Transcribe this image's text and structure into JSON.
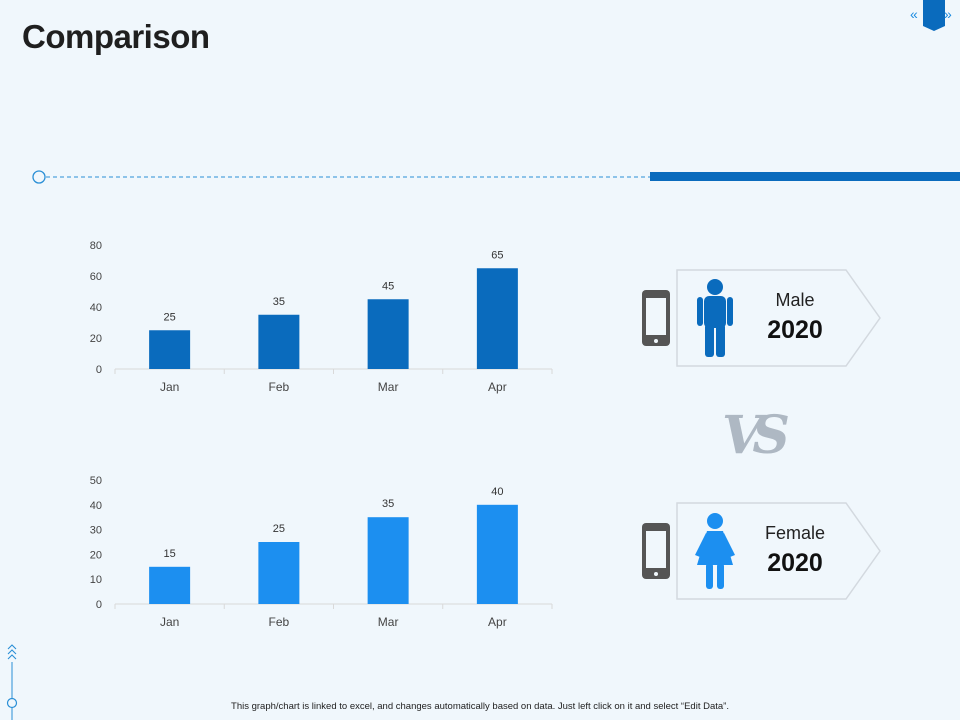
{
  "page": {
    "title": "Comparison",
    "nav_prev": "«",
    "nav_next": "»",
    "footer_note": "This graph/chart is linked to excel, and changes automatically based on data. Just left click on it and select “Edit Data”.",
    "vs_label": "VS"
  },
  "colors": {
    "accent": "#0a6bbd",
    "male_bar": "#0a6bbd",
    "female_bar": "#1c8ff0",
    "male_icon": "#0a6bbd",
    "female_icon": "#1c8ff0",
    "device_icon": "#555555",
    "background": "#f0f7fc"
  },
  "cards": [
    {
      "label": "Male",
      "year": "2020",
      "figure_icon": "male-figure-icon",
      "device_icon": "smartphone-icon"
    },
    {
      "label": "Female",
      "year": "2020",
      "figure_icon": "female-figure-icon",
      "device_icon": "smartphone-icon"
    }
  ],
  "chart_data": [
    {
      "type": "bar",
      "title": "",
      "categories": [
        "Jan",
        "Feb",
        "Mar",
        "Apr"
      ],
      "values": [
        25,
        35,
        45,
        65
      ],
      "data_labels": [
        "25",
        "35",
        "45",
        "65"
      ],
      "ylim": [
        0,
        80
      ],
      "yticks": [
        0,
        20,
        40,
        60,
        80
      ],
      "xlabel": "",
      "ylabel": "",
      "grid": false,
      "legend": "none"
    },
    {
      "type": "bar",
      "title": "",
      "categories": [
        "Jan",
        "Feb",
        "Mar",
        "Apr"
      ],
      "values": [
        15,
        25,
        35,
        40
      ],
      "data_labels": [
        "15",
        "25",
        "35",
        "40"
      ],
      "ylim": [
        0,
        50
      ],
      "yticks": [
        0,
        10,
        20,
        30,
        40,
        50
      ],
      "xlabel": "",
      "ylabel": "",
      "grid": false,
      "legend": "none"
    }
  ]
}
